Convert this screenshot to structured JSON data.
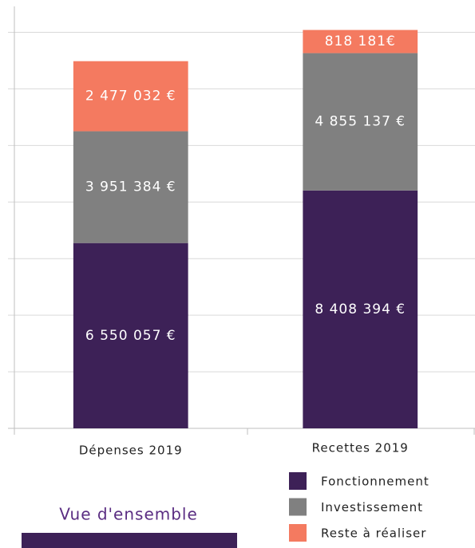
{
  "chart_data": {
    "type": "stacked_bar",
    "title": "Vue d'ensemble",
    "categories": [
      "Dépenses 2019",
      "Recettes 2019"
    ],
    "series": [
      {
        "name": "Fonctionnement",
        "color": "#3d2157",
        "values": [
          6550057,
          8408394
        ],
        "value_labels": [
          "6 550 057 €",
          "8 408 394 €"
        ]
      },
      {
        "name": "Investissement",
        "color": "#808080",
        "values": [
          3951384,
          4855137
        ],
        "value_labels": [
          "3 951 384 €",
          "4 855 137 €"
        ]
      },
      {
        "name": "Reste à réaliser",
        "color": "#f47a60",
        "values": [
          2477032,
          818181
        ],
        "value_labels": [
          "2 477 032 €",
          "818 181€"
        ]
      }
    ],
    "ylim": [
      0,
      15000000
    ],
    "yticks": [
      0,
      2000000,
      4000000,
      6000000,
      8000000,
      10000000,
      12000000,
      14000000
    ],
    "grid": true,
    "legend": "bottom-right"
  }
}
